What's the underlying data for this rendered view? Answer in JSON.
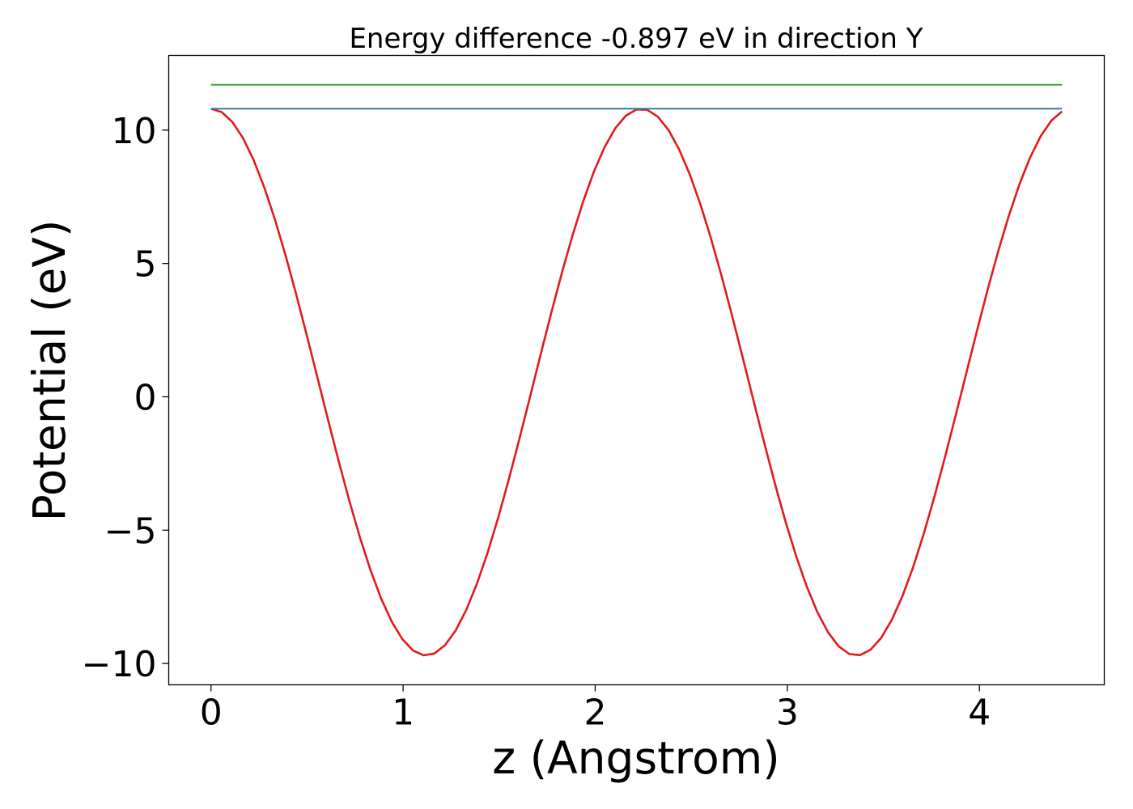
{
  "chart_data": {
    "type": "line",
    "title": "Energy difference -0.897 eV in direction Y",
    "xlabel": "z (Angstrom)",
    "ylabel": "Potential (eV)",
    "xlim": [
      -0.22,
      4.65
    ],
    "ylim": [
      -10.8,
      12.8
    ],
    "xticks": [
      0,
      1,
      2,
      3,
      4
    ],
    "yticks": [
      -10,
      -5,
      0,
      5,
      10
    ],
    "xtick_labels": [
      "0",
      "1",
      "2",
      "3",
      "4"
    ],
    "ytick_labels": [
      "−10",
      "−5",
      "0",
      "5",
      "10"
    ],
    "grid": false,
    "legend": "none",
    "colors": {
      "potential": "#e31a1c",
      "level_low": "#2b7bba",
      "level_high": "#3fa33f"
    },
    "series": [
      {
        "key": "potential",
        "style": "curve",
        "z_range": [
          0,
          4.43
        ],
        "period": 2.24,
        "max": 10.8,
        "min": -9.7
      },
      {
        "key": "level_low",
        "style": "hline",
        "z_range": [
          0,
          4.43
        ],
        "value": 10.8
      },
      {
        "key": "level_high",
        "style": "hline",
        "z_range": [
          0,
          4.43
        ],
        "value": 11.7
      }
    ]
  }
}
